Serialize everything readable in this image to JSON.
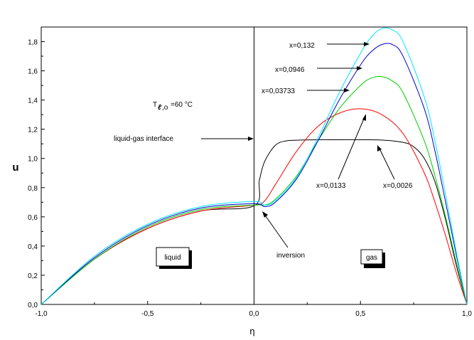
{
  "chart_data": {
    "type": "line",
    "xlabel": "η",
    "ylabel": "u",
    "xlim": [
      -1.0,
      1.0
    ],
    "ylim": [
      0.0,
      1.9
    ],
    "x_ticks": [
      {
        "value": -1.0,
        "label": "-1,0"
      },
      {
        "value": -0.5,
        "label": "-0,5"
      },
      {
        "value": 0.0,
        "label": "0,0"
      },
      {
        "value": 0.5,
        "label": "0,5"
      },
      {
        "value": 1.0,
        "label": "1,0"
      }
    ],
    "y_ticks": [
      {
        "value": 0.0,
        "label": "0,0"
      },
      {
        "value": 0.2,
        "label": "0,2"
      },
      {
        "value": 0.4,
        "label": "0,4"
      },
      {
        "value": 0.6,
        "label": "0,6"
      },
      {
        "value": 0.8,
        "label": "0,8"
      },
      {
        "value": 1.0,
        "label": "1,0"
      },
      {
        "value": 1.2,
        "label": "1,2"
      },
      {
        "value": 1.4,
        "label": "1,4"
      },
      {
        "value": 1.6,
        "label": "1,6"
      },
      {
        "value": 1.8,
        "label": "1,8"
      }
    ],
    "grid": false,
    "interface_line_x": 0.0,
    "series": [
      {
        "name": "x=0,0026",
        "color": "#000000",
        "x": [
          -1.0,
          -0.75,
          -0.5,
          -0.25,
          0.0,
          0.025,
          0.05,
          0.1,
          0.15,
          0.2,
          0.3,
          0.4,
          0.5,
          0.6,
          0.7,
          0.75,
          0.8,
          0.85,
          0.9,
          0.95,
          1.0
        ],
        "y": [
          0.0,
          0.31,
          0.52,
          0.64,
          0.675,
          0.85,
          0.98,
          1.09,
          1.12,
          1.125,
          1.128,
          1.128,
          1.128,
          1.126,
          1.11,
          1.08,
          1.0,
          0.84,
          0.58,
          0.27,
          0.0
        ]
      },
      {
        "name": "x=0,0133",
        "color": "#ff0000",
        "x": [
          -1.0,
          -0.75,
          -0.5,
          -0.25,
          0.0,
          0.05,
          0.1,
          0.2,
          0.3,
          0.4,
          0.5,
          0.6,
          0.7,
          0.8,
          0.85,
          0.9,
          0.95,
          1.0
        ],
        "y": [
          0.0,
          0.31,
          0.52,
          0.64,
          0.68,
          0.71,
          0.82,
          1.05,
          1.22,
          1.31,
          1.34,
          1.3,
          1.17,
          0.9,
          0.7,
          0.47,
          0.22,
          0.0
        ]
      },
      {
        "name": "x=0,03733",
        "color": "#00cc00",
        "x": [
          -1.0,
          -0.75,
          -0.5,
          -0.25,
          0.0,
          0.05,
          0.1,
          0.2,
          0.3,
          0.4,
          0.5,
          0.55,
          0.6,
          0.65,
          0.7,
          0.8,
          0.85,
          0.9,
          0.95,
          1.0
        ],
        "y": [
          0.0,
          0.31,
          0.53,
          0.65,
          0.68,
          0.68,
          0.72,
          0.88,
          1.12,
          1.34,
          1.5,
          1.55,
          1.56,
          1.53,
          1.45,
          1.12,
          0.88,
          0.6,
          0.29,
          0.0
        ]
      },
      {
        "name": "x=0,0946",
        "color": "#0000cc",
        "x": [
          -1.0,
          -0.75,
          -0.5,
          -0.25,
          0.0,
          0.05,
          0.1,
          0.2,
          0.3,
          0.4,
          0.5,
          0.55,
          0.6,
          0.65,
          0.7,
          0.8,
          0.85,
          0.9,
          0.95,
          1.0
        ],
        "y": [
          0.0,
          0.32,
          0.54,
          0.66,
          0.69,
          0.67,
          0.7,
          0.86,
          1.12,
          1.4,
          1.64,
          1.73,
          1.78,
          1.78,
          1.7,
          1.34,
          1.05,
          0.7,
          0.34,
          0.0
        ]
      },
      {
        "name": "x=0,132",
        "color": "#00e5ff",
        "x": [
          -1.0,
          -0.75,
          -0.5,
          -0.25,
          0.0,
          0.05,
          0.1,
          0.2,
          0.3,
          0.4,
          0.5,
          0.55,
          0.6,
          0.65,
          0.7,
          0.8,
          0.85,
          0.9,
          0.95,
          1.0
        ],
        "y": [
          0.0,
          0.33,
          0.55,
          0.67,
          0.705,
          0.68,
          0.71,
          0.87,
          1.14,
          1.45,
          1.72,
          1.83,
          1.89,
          1.88,
          1.8,
          1.42,
          1.12,
          0.75,
          0.36,
          0.0
        ]
      }
    ],
    "annotations": {
      "temperature": "60 °C",
      "interface": "liquid-gas interface",
      "inversion": "inversion",
      "liquid": "liquid",
      "gas": "gas"
    }
  }
}
